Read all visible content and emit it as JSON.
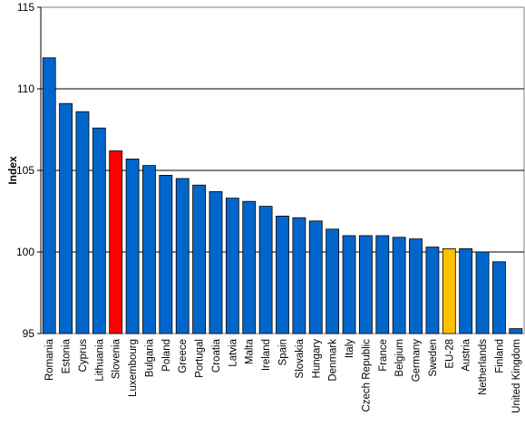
{
  "chart_data": {
    "type": "bar",
    "title": "",
    "xlabel": "",
    "ylabel": "Index",
    "ylim": [
      95,
      115
    ],
    "yticks": [
      95,
      100,
      105,
      110,
      115
    ],
    "grid": true,
    "legend": "none",
    "categories": [
      "Romania",
      "Estonia",
      "Cyprus",
      "Lithuania",
      "Slovenia",
      "Luxembourg",
      "Bulgaria",
      "Poland",
      "Greece",
      "Portugal",
      "Croatia",
      "Latvia",
      "Malta",
      "Ireland",
      "Spain",
      "Slovakia",
      "Hungary",
      "Denmark",
      "Italy",
      "Czech Republic",
      "France",
      "Belgium",
      "Germany",
      "Sweden",
      "EU-28",
      "Austria",
      "Netherlands",
      "Finland",
      "United Kingdom"
    ],
    "values": [
      111.9,
      109.1,
      108.6,
      107.6,
      106.2,
      105.7,
      105.3,
      104.7,
      104.5,
      104.1,
      103.7,
      103.3,
      103.1,
      102.8,
      102.2,
      102.1,
      101.9,
      101.4,
      101.0,
      101.0,
      101.0,
      100.9,
      100.8,
      100.3,
      100.2,
      100.2,
      100.0,
      99.4,
      95.3
    ],
    "colors": {
      "default": "#0066cc",
      "highlight_slovenia": "#ff0000",
      "highlight_eu28": "#ffc000",
      "grid": "#000000",
      "plot_background": "#ffffff"
    },
    "highlights": {
      "Slovenia": "#ff0000",
      "EU-28": "#ffc000"
    }
  }
}
